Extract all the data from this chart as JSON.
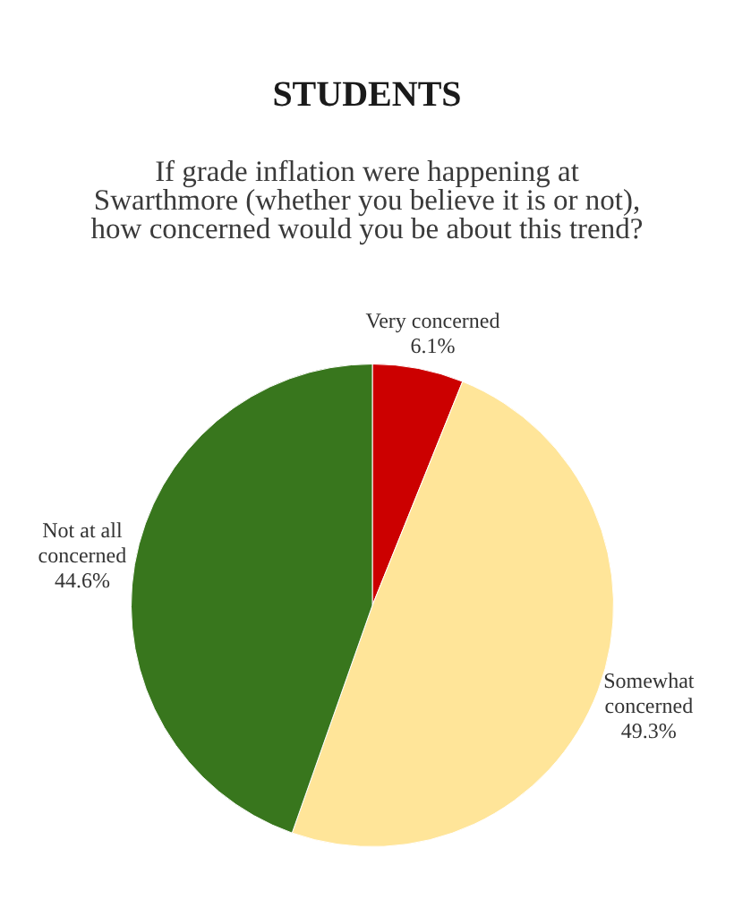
{
  "chart_data": {
    "type": "pie",
    "title": "STUDENTS",
    "subtitle": "If grade inflation were happening at Swarthmore (whether you believe it is or not), how concerned would you be about this trend?",
    "categories": [
      "Very concerned",
      "Somewhat concerned",
      "Not at all concerned"
    ],
    "values": [
      6.1,
      49.3,
      44.6
    ],
    "colors": [
      "#cc0000",
      "#ffe599",
      "#38761d"
    ],
    "value_labels": [
      "6.1%",
      "49.3%",
      "44.6%"
    ],
    "legend": false
  }
}
